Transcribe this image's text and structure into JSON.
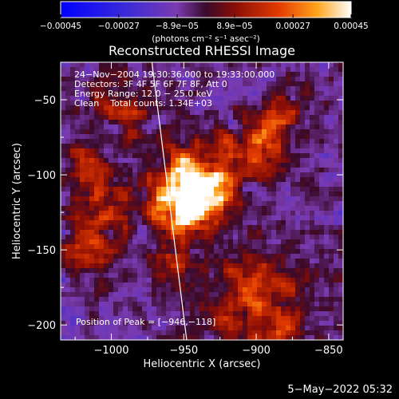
{
  "chart_data": {
    "type": "heatmap",
    "title": "Reconstructed RHESSI Image",
    "xlabel": "Heliocentric X (arcsec)",
    "ylabel": "Heliocentric Y (arcsec)",
    "xlim": [
      -1035,
      -840
    ],
    "ylim": [
      -210,
      -25
    ],
    "xticks": [
      -1000,
      -950,
      -900,
      -850
    ],
    "xtick_labels": [
      "−1000",
      "−950",
      "−900",
      "−850"
    ],
    "yticks": [
      -50,
      -100,
      -150,
      -200
    ],
    "ytick_labels": [
      "−50",
      "−100",
      "−150",
      "−200"
    ],
    "colorbar": {
      "range": [
        -0.00045,
        0.00045
      ],
      "ticks": [
        -0.00045,
        -0.00027,
        -8.9e-05,
        8.9e-05,
        0.00027,
        0.00045
      ],
      "tick_labels": [
        "−0.00045",
        "−0.00027",
        "−8.9e−05",
        "8.9e−05",
        "0.00027",
        "0.00045"
      ],
      "units": "(photons cm⁻² s⁻¹ asec⁻²)"
    },
    "annotations": [
      "24−Nov−2004 19:30:36.000 to 19:33:00.000",
      "Detectors: 3F 4F 5F 6F 7F 8F, Att 0",
      "Energy Range: 12.0 − 25.0 keV",
      "Clean    Total counts: 1.34E+03"
    ],
    "peak_label": "Position of Peak = [−946,−118]",
    "peak": [
      -946,
      -118
    ],
    "limb_line": [
      [
        -972,
        -25
      ],
      [
        -948,
        -210
      ]
    ],
    "sources": [
      {
        "x": -950,
        "y": -118,
        "sigma": 14,
        "amp": 1.0
      },
      {
        "x": -938,
        "y": -103,
        "sigma": 18,
        "amp": 0.75
      },
      {
        "x": -1008,
        "y": -120,
        "sigma": 17,
        "amp": 0.5
      },
      {
        "x": -900,
        "y": -83,
        "sigma": 14,
        "amp": 0.5
      },
      {
        "x": -880,
        "y": -62,
        "sigma": 12,
        "amp": 0.4
      },
      {
        "x": -992,
        "y": -55,
        "sigma": 14,
        "amp": 0.4
      },
      {
        "x": -1018,
        "y": -150,
        "sigma": 13,
        "amp": 0.35
      },
      {
        "x": -898,
        "y": -190,
        "sigma": 22,
        "amp": 0.6
      },
      {
        "x": -960,
        "y": -160,
        "sigma": 12,
        "amp": 0.3
      },
      {
        "x": -1020,
        "y": -90,
        "sigma": 10,
        "amp": 0.3
      }
    ]
  },
  "footer": {
    "timestamp": "5−May−2022 05:32"
  }
}
